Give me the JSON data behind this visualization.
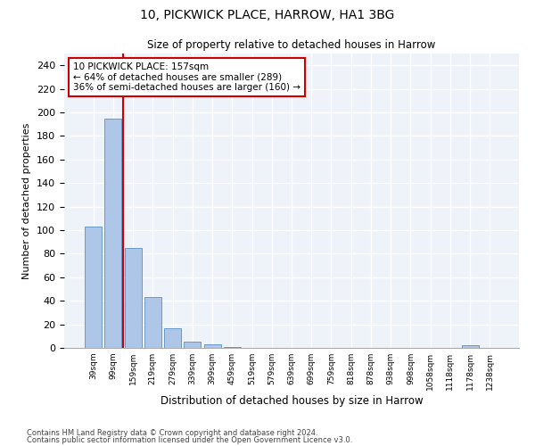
{
  "title1": "10, PICKWICK PLACE, HARROW, HA1 3BG",
  "title2": "Size of property relative to detached houses in Harrow",
  "xlabel": "Distribution of detached houses by size in Harrow",
  "ylabel": "Number of detached properties",
  "bar_labels": [
    "39sqm",
    "99sqm",
    "159sqm",
    "219sqm",
    "279sqm",
    "339sqm",
    "399sqm",
    "459sqm",
    "519sqm",
    "579sqm",
    "639sqm",
    "699sqm",
    "759sqm",
    "818sqm",
    "878sqm",
    "938sqm",
    "998sqm",
    "1058sqm",
    "1118sqm",
    "1178sqm",
    "1238sqm"
  ],
  "bar_values": [
    103,
    195,
    85,
    43,
    17,
    5,
    3,
    1,
    0,
    0,
    0,
    0,
    0,
    0,
    0,
    0,
    0,
    0,
    0,
    2,
    0
  ],
  "bar_color": "#aec6e8",
  "bar_edgecolor": "#5a8fc2",
  "vline_color": "#cc0000",
  "annotation_text": "10 PICKWICK PLACE: 157sqm\n← 64% of detached houses are smaller (289)\n36% of semi-detached houses are larger (160) →",
  "annotation_box_color": "white",
  "annotation_box_edgecolor": "#cc0000",
  "ylim": [
    0,
    250
  ],
  "yticks": [
    0,
    20,
    40,
    60,
    80,
    100,
    120,
    140,
    160,
    180,
    200,
    220,
    240
  ],
  "footer1": "Contains HM Land Registry data © Crown copyright and database right 2024.",
  "footer2": "Contains public sector information licensed under the Open Government Licence v3.0.",
  "bg_color": "#eef2f9",
  "grid_color": "white"
}
